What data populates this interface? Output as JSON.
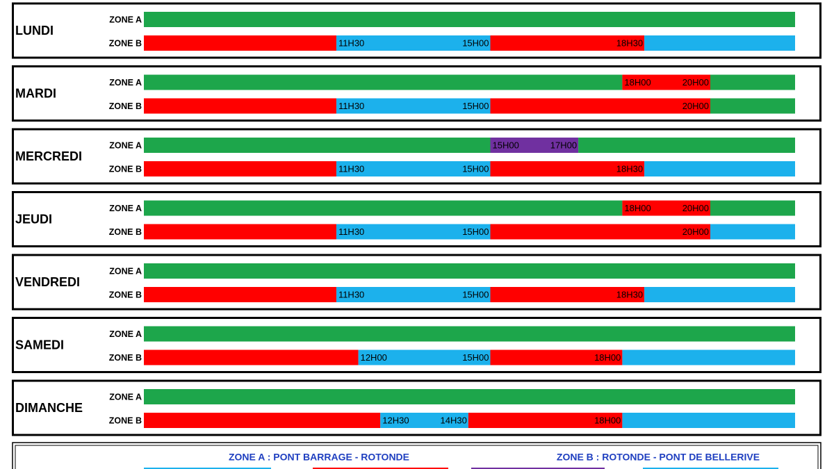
{
  "days": [
    {
      "name": "LUNDI",
      "zones": [
        {
          "label": "ZONE A",
          "colors": [
            "#1da64b"
          ],
          "times": []
        },
        {
          "label": "ZONE B",
          "colors": [
            "#ff0000",
            "#1cb1ec",
            "#ff0000",
            "#1cb1ec"
          ],
          "times": [
            "11H30",
            "15H00",
            "18H30"
          ]
        }
      ]
    },
    {
      "name": "MARDI",
      "zones": [
        {
          "label": "ZONE A",
          "colors": [
            "#1da64b",
            "#ff0000",
            "#1da64b"
          ],
          "times": [
            "18H00",
            "20H00"
          ]
        },
        {
          "label": "ZONE B",
          "colors": [
            "#ff0000",
            "#1cb1ec",
            "#ff0000",
            "#1da64b"
          ],
          "times": [
            "11H30",
            "15H00",
            "20H00"
          ]
        }
      ]
    },
    {
      "name": "MERCREDI",
      "zones": [
        {
          "label": "ZONE A",
          "colors": [
            "#1da64b",
            "#7030a0",
            "#1da64b"
          ],
          "times": [
            "15H00",
            "17H00"
          ]
        },
        {
          "label": "ZONE B",
          "colors": [
            "#ff0000",
            "#1cb1ec",
            "#ff0000",
            "#1cb1ec"
          ],
          "times": [
            "11H30",
            "15H00",
            "18H30"
          ]
        }
      ]
    },
    {
      "name": "JEUDI",
      "zones": [
        {
          "label": "ZONE A",
          "colors": [
            "#1da64b",
            "#ff0000",
            "#1da64b"
          ],
          "times": [
            "18H00",
            "20H00"
          ]
        },
        {
          "label": "ZONE B",
          "colors": [
            "#ff0000",
            "#1cb1ec",
            "#ff0000",
            "#1cb1ec"
          ],
          "times": [
            "11H30",
            "15H00",
            "20H00"
          ]
        }
      ]
    },
    {
      "name": "VENDREDI",
      "zones": [
        {
          "label": "ZONE A",
          "colors": [
            "#1da64b"
          ],
          "times": []
        },
        {
          "label": "ZONE B",
          "colors": [
            "#ff0000",
            "#1cb1ec",
            "#ff0000",
            "#1cb1ec"
          ],
          "times": [
            "11H30",
            "15H00",
            "18H30"
          ]
        }
      ]
    },
    {
      "name": "SAMEDI",
      "zones": [
        {
          "label": "ZONE A",
          "colors": [
            "#1da64b"
          ],
          "times": []
        },
        {
          "label": "ZONE B",
          "colors": [
            "#ff0000",
            "#1cb1ec",
            "#ff0000",
            "#1cb1ec"
          ],
          "times": [
            "12H00",
            "15H00",
            "18H00"
          ]
        }
      ]
    },
    {
      "name": "DIMANCHE",
      "zones": [
        {
          "label": "ZONE A",
          "colors": [
            "#1da64b"
          ],
          "times": []
        },
        {
          "label": "ZONE B",
          "colors": [
            "#ff0000",
            "#1cb1ec",
            "#ff0000",
            "#1cb1ec"
          ],
          "times": [
            "12H30",
            "14H30",
            "18H00"
          ]
        }
      ]
    }
  ],
  "legend": {
    "zone_a": "ZONE A : PONT BARRAGE - ROTONDE",
    "zone_b": "ZONE B : ROTONDE - PONT DE BELLERIVE"
  }
}
